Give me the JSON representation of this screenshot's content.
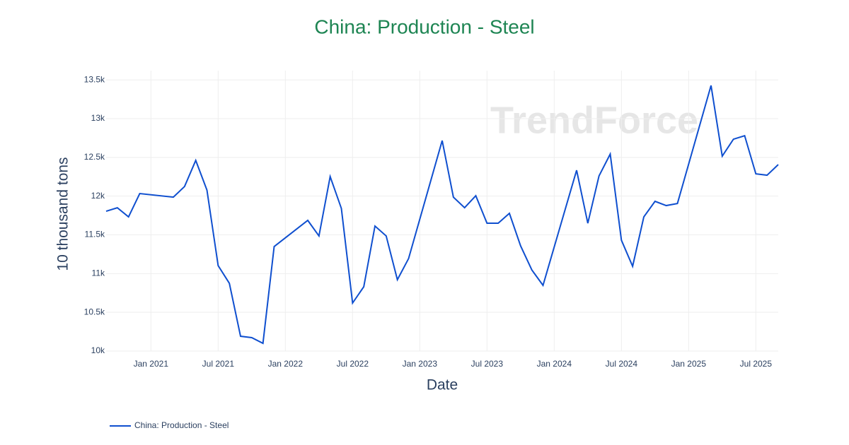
{
  "chart_data": {
    "type": "line",
    "title": "China: Production - Steel",
    "x_label": "Date",
    "y_label": "10 thousand tons",
    "watermark": "TrendForce",
    "grid": true,
    "legend_position": "bottom-left",
    "x": [
      "2020-09",
      "2020-10",
      "2020-11",
      "2020-12",
      "2021-03",
      "2021-04",
      "2021-05",
      "2021-06",
      "2021-07",
      "2021-08",
      "2021-09",
      "2021-10",
      "2021-11",
      "2021-12",
      "2022-03",
      "2022-04",
      "2022-05",
      "2022-06",
      "2022-07",
      "2022-08",
      "2022-09",
      "2022-10",
      "2022-11",
      "2022-12",
      "2023-03",
      "2023-04",
      "2023-05",
      "2023-06",
      "2023-07",
      "2023-08",
      "2023-09",
      "2023-10",
      "2023-11",
      "2023-12",
      "2024-03",
      "2024-04",
      "2024-05",
      "2024-06",
      "2024-07",
      "2024-08",
      "2024-09",
      "2024-10",
      "2024-11",
      "2024-12",
      "2025-03",
      "2025-04",
      "2025-05",
      "2025-06",
      "2025-07",
      "2025-08",
      "2025-09"
    ],
    "series": [
      {
        "name": "China: Production - Steel",
        "color": "#0f4fcf",
        "values": [
          11805,
          11850,
          11732,
          12033,
          11987,
          12124,
          12461,
          12078,
          11103,
          10875,
          10191,
          10173,
          10100,
          11349,
          11687,
          11486,
          12252,
          11841,
          10620,
          10830,
          11614,
          11486,
          10921,
          11194,
          12717,
          11987,
          11850,
          12005,
          11650,
          11650,
          11778,
          11358,
          11048,
          10848,
          12334,
          11650,
          12261,
          12543,
          11431,
          11094,
          11732,
          11933,
          11878,
          11905,
          13428,
          12516,
          12735,
          12780,
          12288,
          12270,
          12407
        ]
      }
    ],
    "xlim": [
      "2020-09",
      "2025-09"
    ],
    "xticks": [
      {
        "value": "2021-01",
        "label": "Jan 2021"
      },
      {
        "value": "2021-07",
        "label": "Jul 2021"
      },
      {
        "value": "2022-01",
        "label": "Jan 2022"
      },
      {
        "value": "2022-07",
        "label": "Jul 2022"
      },
      {
        "value": "2023-01",
        "label": "Jan 2023"
      },
      {
        "value": "2023-07",
        "label": "Jul 2023"
      },
      {
        "value": "2024-01",
        "label": "Jan 2024"
      },
      {
        "value": "2024-07",
        "label": "Jul 2024"
      },
      {
        "value": "2025-01",
        "label": "Jan 2025"
      },
      {
        "value": "2025-07",
        "label": "Jul 2025"
      }
    ],
    "ylim": [
      10000,
      13620
    ],
    "yticks": [
      {
        "value": 10000,
        "label": "10k"
      },
      {
        "value": 10500,
        "label": "10.5k"
      },
      {
        "value": 11000,
        "label": "11k"
      },
      {
        "value": 11500,
        "label": "11.5k"
      },
      {
        "value": 12000,
        "label": "12k"
      },
      {
        "value": 12500,
        "label": "12.5k"
      },
      {
        "value": 13000,
        "label": "13k"
      },
      {
        "value": 13500,
        "label": "13.5k"
      }
    ]
  }
}
